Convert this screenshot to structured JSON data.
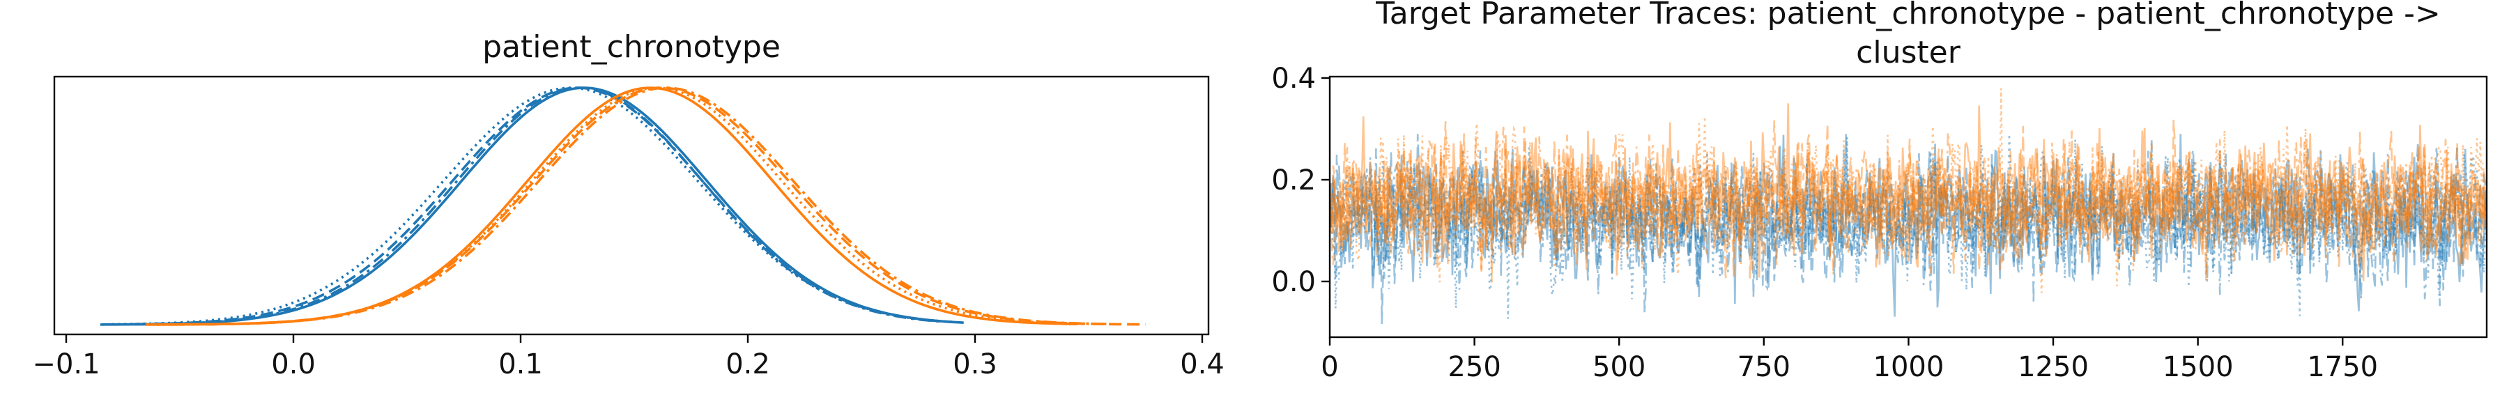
{
  "chart_data": [
    {
      "type": "line",
      "title": "patient_chronotype",
      "xlabel": "",
      "ylabel": "",
      "xlim": [
        -0.1,
        0.4
      ],
      "x_ticks": [
        -0.1,
        0.0,
        0.1,
        0.2,
        0.3,
        0.4
      ],
      "x_tick_labels": [
        "−0.1",
        "0.0",
        "0.1",
        "0.2",
        "0.3",
        "0.4"
      ],
      "y_ticks_visible": false,
      "colors": [
        "#1f77b4",
        "#ff7f0e"
      ],
      "line_styles": [
        "solid",
        "dashed",
        "dotted",
        "dashdot"
      ],
      "series": [
        {
          "color": "#1f77b4",
          "chain": 0,
          "style": "solid",
          "mean": 0.128,
          "sd": 0.054,
          "range": [
            -0.085,
            0.295
          ]
        },
        {
          "color": "#1f77b4",
          "chain": 1,
          "style": "dashed",
          "mean": 0.125,
          "sd": 0.055,
          "range": [
            -0.07,
            0.29
          ]
        },
        {
          "color": "#1f77b4",
          "chain": 2,
          "style": "dotted",
          "mean": 0.122,
          "sd": 0.056,
          "range": [
            -0.08,
            0.29
          ]
        },
        {
          "color": "#1f77b4",
          "chain": 3,
          "style": "dashdot",
          "mean": 0.126,
          "sd": 0.054,
          "range": [
            -0.07,
            0.285
          ]
        },
        {
          "color": "#ff7f0e",
          "chain": 0,
          "style": "solid",
          "mean": 0.157,
          "sd": 0.054,
          "range": [
            -0.065,
            0.345
          ]
        },
        {
          "color": "#ff7f0e",
          "chain": 1,
          "style": "dashed",
          "mean": 0.162,
          "sd": 0.056,
          "range": [
            -0.055,
            0.375
          ]
        },
        {
          "color": "#ff7f0e",
          "chain": 2,
          "style": "dotted",
          "mean": 0.16,
          "sd": 0.055,
          "range": [
            -0.06,
            0.35
          ]
        },
        {
          "color": "#ff7f0e",
          "chain": 3,
          "style": "dashdot",
          "mean": 0.164,
          "sd": 0.056,
          "range": [
            -0.05,
            0.36
          ]
        }
      ]
    },
    {
      "type": "line",
      "title_line1": "Target Parameter Traces: patient_chronotype - patient_chronotype ->",
      "title_line2": "cluster",
      "xlabel": "",
      "ylabel": "",
      "xlim": [
        0,
        1999
      ],
      "ylim": [
        -0.1,
        0.4
      ],
      "x_ticks": [
        0,
        250,
        500,
        750,
        1000,
        1250,
        1500,
        1750
      ],
      "x_tick_labels": [
        "0",
        "250",
        "500",
        "750",
        "1000",
        "1250",
        "1500",
        "1750"
      ],
      "y_ticks": [
        0.0,
        0.2,
        0.4
      ],
      "y_tick_labels": [
        "0.0",
        "0.2",
        "0.4"
      ],
      "draws": 2000,
      "colors": [
        "#1f77b4",
        "#ff7f0e"
      ],
      "series": [
        {
          "color": "#1f77b4",
          "mean": 0.125,
          "sd": 0.055,
          "chains": 4,
          "min": -0.09,
          "max": 0.29
        },
        {
          "color": "#ff7f0e",
          "mean": 0.16,
          "sd": 0.055,
          "chains": 4,
          "min": -0.07,
          "max": 0.38
        }
      ]
    }
  ]
}
